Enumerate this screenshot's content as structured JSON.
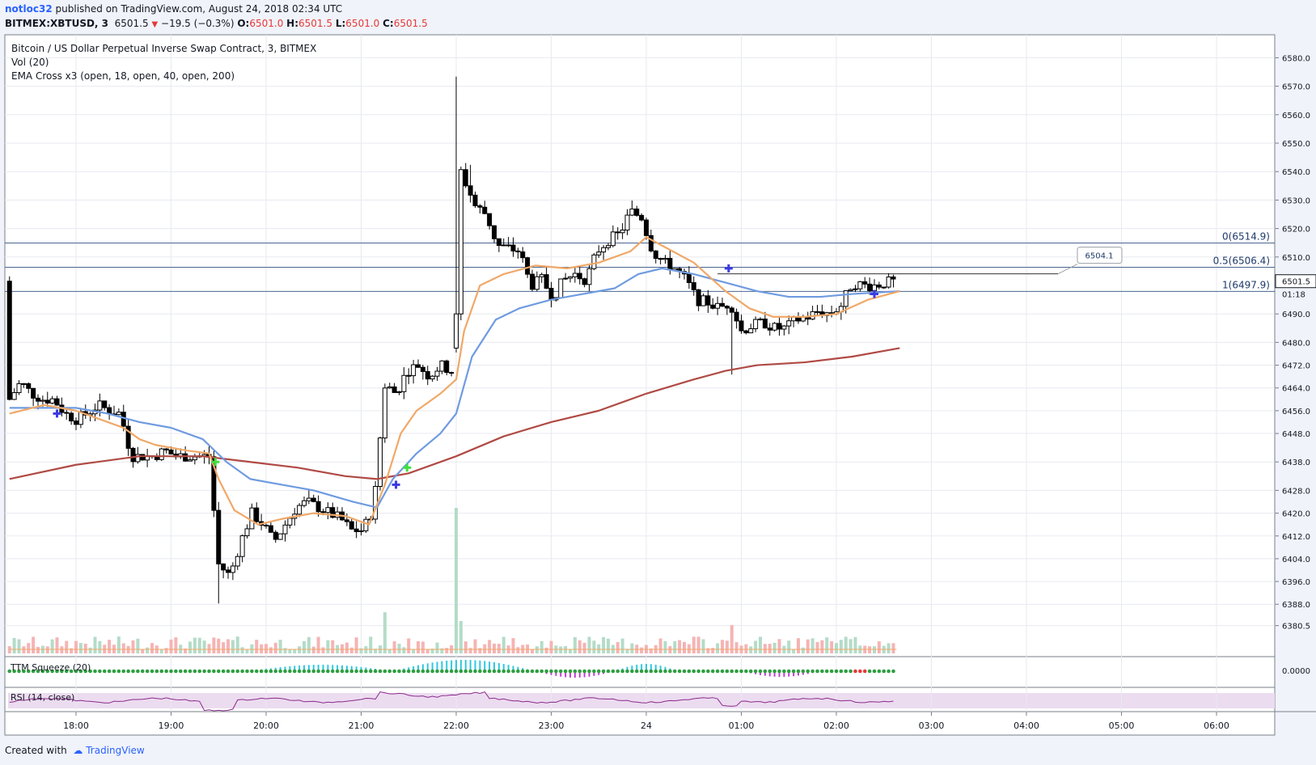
{
  "header": {
    "user": "notloc32",
    "published_text": " published on TradingView.com, August 24, 2018 02:34 UTC",
    "symbol": "BITMEX:XBTUSD, 3",
    "last": "6501.5",
    "change": "−19.5 (−0.3%)",
    "o_label": "O:",
    "o": "6501.0",
    "h_label": "H:",
    "h": "6501.5",
    "l_label": "L:",
    "l": "6501.0",
    "c_label": "C:",
    "c": "6501.5"
  },
  "legend": {
    "title": "Bitcoin / US Dollar Perpetual Inverse Swap Contract, 3, BITMEX",
    "vol": "Vol (20)",
    "ema": "EMA Cross x3 (open, 18, open, 40, open, 200)",
    "squeeze": "TTM Squeeze (20)",
    "rsi": "RSI (14, close)"
  },
  "footer": {
    "created": "Created with",
    "brand": "TradingView"
  },
  "colors": {
    "up": "#ffffff",
    "down": "#000000",
    "ema18": "#f0a868",
    "ema40": "#6f9be0",
    "ema200": "#b04a44",
    "fib": "#4a6490",
    "vol_up": "#b4dcc8",
    "vol_down": "#f5b4b4",
    "rsi_line": "#8a2a8a",
    "rsi_band": "#ead8ee"
  },
  "chart_data": {
    "type": "candlestick",
    "price_axis": {
      "ticks": [
        6380.5,
        6388.0,
        6396.0,
        6404.0,
        6412.0,
        6420.0,
        6428.0,
        6438.0,
        6448.0,
        6456.0,
        6464.0,
        6472.0,
        6480.0,
        6490.0,
        6510.0,
        6520.0,
        6530.0,
        6540.0,
        6550.0,
        6560.0,
        6570.0,
        6580.0
      ]
    },
    "price_label_texts": [
      "6380.5",
      "6388.0",
      "6396.0",
      "6404.0",
      "6412.0",
      "6420.0",
      "6428.0",
      "6438.0",
      "6448.0",
      "6456.0",
      "6464.0",
      "6472.0",
      "6480.0",
      "6490.0",
      "6510.0",
      "6520.0",
      "6530.0",
      "6540.0",
      "6550.0",
      "6560.0",
      "6570.0",
      "6580.0"
    ],
    "last_price": {
      "value": 6501.5,
      "label": "6501.5",
      "countdown": "01:18"
    },
    "squeeze_label": "0.0000",
    "time_axis": {
      "labels": [
        "18:00",
        "19:00",
        "20:00",
        "21:00",
        "22:00",
        "23:00",
        "24",
        "01:00",
        "02:00",
        "03:00",
        "04:00",
        "05:00",
        "06:00"
      ],
      "minutes": [
        0,
        60,
        120,
        180,
        240,
        300,
        360,
        420,
        480,
        540,
        600,
        660,
        720
      ],
      "start_minute": -43,
      "end_minute": 727
    },
    "fib_levels": [
      {
        "label": "0(6514.9)",
        "value": 6514.9
      },
      {
        "label": "0.5(6506.4)",
        "value": 6506.4
      },
      {
        "label": "1(6497.9)",
        "value": 6497.9
      }
    ],
    "callout": {
      "text": "6504.1",
      "value": 6504.1
    },
    "close_path": [
      [
        -42,
        6460
      ],
      [
        -35,
        6466
      ],
      [
        -28,
        6462
      ],
      [
        -21,
        6460
      ],
      [
        -14,
        6460
      ],
      [
        -7,
        6455
      ],
      [
        0,
        6453
      ],
      [
        7,
        6455
      ],
      [
        14,
        6458
      ],
      [
        21,
        6456
      ],
      [
        28,
        6455
      ],
      [
        35,
        6440
      ],
      [
        42,
        6440
      ],
      [
        49,
        6440
      ],
      [
        56,
        6442
      ],
      [
        63,
        6440
      ],
      [
        70,
        6440
      ],
      [
        77,
        6440
      ],
      [
        84,
        6440
      ],
      [
        90,
        6402
      ],
      [
        97,
        6398
      ],
      [
        104,
        6410
      ],
      [
        111,
        6420
      ],
      [
        118,
        6416
      ],
      [
        125,
        6410
      ],
      [
        132,
        6416
      ],
      [
        139,
        6422
      ],
      [
        146,
        6424
      ],
      [
        153,
        6422
      ],
      [
        160,
        6420
      ],
      [
        167,
        6418
      ],
      [
        174,
        6414
      ],
      [
        181,
        6414
      ],
      [
        188,
        6422
      ],
      [
        195,
        6465
      ],
      [
        202,
        6462
      ],
      [
        209,
        6470
      ],
      [
        216,
        6472
      ],
      [
        223,
        6468
      ],
      [
        230,
        6472
      ],
      [
        237,
        6470
      ],
      [
        240,
        6500
      ],
      [
        243,
        6540
      ],
      [
        246,
        6536
      ],
      [
        252,
        6528
      ],
      [
        259,
        6525
      ],
      [
        266,
        6514
      ],
      [
        273,
        6513
      ],
      [
        280,
        6512
      ],
      [
        287,
        6500
      ],
      [
        294,
        6502
      ],
      [
        301,
        6496
      ],
      [
        308,
        6502
      ],
      [
        315,
        6504
      ],
      [
        322,
        6502
      ],
      [
        329,
        6512
      ],
      [
        336,
        6516
      ],
      [
        343,
        6518
      ],
      [
        350,
        6526
      ],
      [
        357,
        6524
      ],
      [
        364,
        6512
      ],
      [
        371,
        6508
      ],
      [
        378,
        6506
      ],
      [
        385,
        6502
      ],
      [
        392,
        6495
      ],
      [
        399,
        6494
      ],
      [
        406,
        6492
      ],
      [
        413,
        6494
      ],
      [
        420,
        6484
      ],
      [
        427,
        6486
      ],
      [
        434,
        6487
      ],
      [
        441,
        6485
      ],
      [
        448,
        6485
      ],
      [
        455,
        6488
      ],
      [
        462,
        6489
      ],
      [
        469,
        6491
      ],
      [
        476,
        6490
      ],
      [
        483,
        6493
      ],
      [
        490,
        6501
      ],
      [
        497,
        6500
      ],
      [
        504,
        6500
      ],
      [
        511,
        6501
      ],
      [
        518,
        6501.5
      ]
    ],
    "ema_18": [
      [
        -42,
        6455
      ],
      [
        -20,
        6458
      ],
      [
        0,
        6456
      ],
      [
        20,
        6452
      ],
      [
        30,
        6450
      ],
      [
        40,
        6446
      ],
      [
        50,
        6444
      ],
      [
        70,
        6442
      ],
      [
        84,
        6441
      ],
      [
        90,
        6432
      ],
      [
        100,
        6421
      ],
      [
        115,
        6416
      ],
      [
        130,
        6418
      ],
      [
        150,
        6420
      ],
      [
        170,
        6419
      ],
      [
        185,
        6416
      ],
      [
        195,
        6430
      ],
      [
        205,
        6448
      ],
      [
        215,
        6456
      ],
      [
        230,
        6462
      ],
      [
        240,
        6467
      ],
      [
        245,
        6484
      ],
      [
        255,
        6500
      ],
      [
        270,
        6504
      ],
      [
        290,
        6507
      ],
      [
        310,
        6506
      ],
      [
        330,
        6508
      ],
      [
        350,
        6512
      ],
      [
        360,
        6517
      ],
      [
        370,
        6514
      ],
      [
        390,
        6508
      ],
      [
        410,
        6498
      ],
      [
        425,
        6492
      ],
      [
        440,
        6489
      ],
      [
        460,
        6489
      ],
      [
        480,
        6490
      ],
      [
        500,
        6495
      ],
      [
        520,
        6498
      ]
    ],
    "ema_40": [
      [
        -42,
        6457
      ],
      [
        0,
        6457
      ],
      [
        20,
        6455
      ],
      [
        40,
        6452
      ],
      [
        60,
        6450
      ],
      [
        80,
        6446
      ],
      [
        95,
        6438
      ],
      [
        110,
        6432
      ],
      [
        130,
        6430
      ],
      [
        150,
        6428
      ],
      [
        175,
        6424
      ],
      [
        190,
        6422
      ],
      [
        200,
        6432
      ],
      [
        215,
        6441
      ],
      [
        230,
        6448
      ],
      [
        240,
        6455
      ],
      [
        250,
        6475
      ],
      [
        265,
        6488
      ],
      [
        280,
        6492
      ],
      [
        300,
        6495
      ],
      [
        320,
        6497
      ],
      [
        340,
        6499
      ],
      [
        355,
        6504
      ],
      [
        370,
        6506
      ],
      [
        390,
        6504
      ],
      [
        410,
        6501
      ],
      [
        430,
        6498
      ],
      [
        450,
        6496
      ],
      [
        470,
        6496
      ],
      [
        490,
        6497
      ],
      [
        520,
        6498
      ]
    ],
    "ema_200": [
      [
        -42,
        6432
      ],
      [
        0,
        6437
      ],
      [
        40,
        6440
      ],
      [
        80,
        6440
      ],
      [
        110,
        6438
      ],
      [
        140,
        6436
      ],
      [
        170,
        6433
      ],
      [
        190,
        6432
      ],
      [
        210,
        6434
      ],
      [
        240,
        6440
      ],
      [
        270,
        6447
      ],
      [
        300,
        6452
      ],
      [
        330,
        6456
      ],
      [
        360,
        6462
      ],
      [
        390,
        6467
      ],
      [
        410,
        6470
      ],
      [
        430,
        6472
      ],
      [
        460,
        6473
      ],
      [
        490,
        6475
      ],
      [
        520,
        6478
      ]
    ],
    "cross_markers": [
      {
        "t": -12,
        "value": 6455,
        "color": "#3b3be0"
      },
      {
        "t": 88,
        "value": 6438,
        "color": "#40e040"
      },
      {
        "t": 209,
        "value": 6436,
        "color": "#40e040"
      },
      {
        "t": 202,
        "value": 6430,
        "color": "#3b3be0"
      },
      {
        "t": 412,
        "value": 6506,
        "color": "#3b3be0"
      },
      {
        "t": 504,
        "value": 6497,
        "color": "#3b3be0"
      }
    ]
  }
}
